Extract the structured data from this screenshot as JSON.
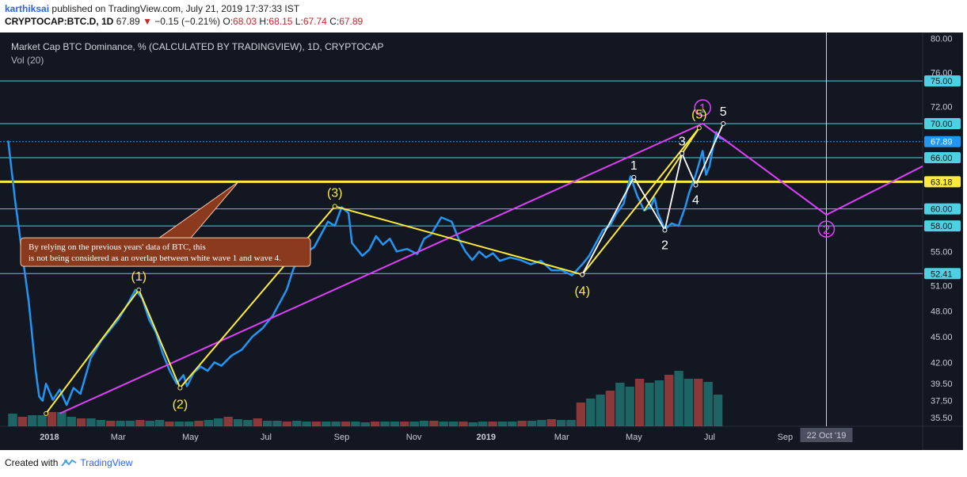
{
  "header": {
    "author": "karthiksai",
    "published": "published on TradingView.com, July 21, 2019 17:37:33 IST",
    "symbol": "CRYPTOCAP:BTC.D, 1D",
    "last": "67.89",
    "change_arrow": "▼",
    "change": "−0.15 (−0.21%)",
    "o_label": "O:",
    "o": "68.03",
    "h_label": "H:",
    "h": "68.15",
    "l_label": "L:",
    "l": "67.74",
    "c_label": "C:",
    "c": "67.89"
  },
  "footer": {
    "created_with": "Created with",
    "brand": "TradingView",
    "brand_icon": "tradingview-logo-icon"
  },
  "colors": {
    "background": "#131722",
    "price": "#2196f3",
    "yellow": "#ffeb3b",
    "magenta": "#e040fb",
    "cyan": "#4dd0e1",
    "note_bg": "#8b3a1e"
  },
  "chart_data": {
    "type": "line",
    "title": "Market Cap BTC Dominance, % (CALCULATED BY TRADINGVIEW), 1D, CRYPTOCAP",
    "subtitle": "Vol (20)",
    "ylim": [
      34.5,
      80.5
    ],
    "xlim": [
      0,
      26.7
    ],
    "y_ticks": [
      80.0,
      76.0,
      72.0,
      66.0,
      55.0,
      51.0,
      48.0,
      45.0,
      42.0,
      39.5,
      37.5,
      35.5
    ],
    "x_ticks": [
      {
        "label": "2018",
        "x": 1.3,
        "bold": true
      },
      {
        "label": "Mar",
        "x": 3.3
      },
      {
        "label": "May",
        "x": 5.4
      },
      {
        "label": "Jul",
        "x": 7.6
      },
      {
        "label": "Sep",
        "x": 9.8
      },
      {
        "label": "Nov",
        "x": 11.9
      },
      {
        "label": "2019",
        "x": 14.0,
        "bold": true
      },
      {
        "label": "Mar",
        "x": 16.2
      },
      {
        "label": "May",
        "x": 18.3
      },
      {
        "label": "Jul",
        "x": 20.5
      },
      {
        "label": "Sep",
        "x": 22.7
      }
    ],
    "x_units": "months since Dec 1, 2017",
    "levels": [
      {
        "value": 75.0,
        "label": "75.00",
        "color": "cyan"
      },
      {
        "value": 70.0,
        "label": "70.00",
        "color": "cyan"
      },
      {
        "value": 67.89,
        "label": "67.89",
        "color": "current"
      },
      {
        "value": 66.0,
        "label": "66.00",
        "color": "cyan"
      },
      {
        "value": 63.18,
        "label": "63.18",
        "color": "yellow"
      },
      {
        "value": 60.0,
        "label": "60.00",
        "color": "cyan"
      },
      {
        "value": 58.0,
        "label": "58.00",
        "color": "cyan"
      },
      {
        "value": 52.41,
        "label": "52.41",
        "color": "cyan"
      }
    ],
    "series": [
      {
        "name": "BTC Dominance",
        "x": [
          0.1,
          0.3,
          0.5,
          0.7,
          0.8,
          0.9,
          1.0,
          1.1,
          1.2,
          1.4,
          1.6,
          1.8,
          2.0,
          2.2,
          2.5,
          2.8,
          3.0,
          3.3,
          3.6,
          3.8,
          4.0,
          4.2,
          4.4,
          4.6,
          4.8,
          5.0,
          5.2,
          5.3,
          5.5,
          5.7,
          5.9,
          6.1,
          6.3,
          6.6,
          6.9,
          7.2,
          7.5,
          7.8,
          8.0,
          8.2,
          8.4,
          8.6,
          8.8,
          9.0,
          9.2,
          9.4,
          9.6,
          9.8,
          10.0,
          10.1,
          10.2,
          10.4,
          10.6,
          10.8,
          11.0,
          11.2,
          11.4,
          11.7,
          12.0,
          12.2,
          12.4,
          12.7,
          13.0,
          13.2,
          13.4,
          13.6,
          13.8,
          14.0,
          14.2,
          14.4,
          14.7,
          15.0,
          15.3,
          15.6,
          15.9,
          16.2,
          16.5,
          16.8,
          17.0,
          17.2,
          17.4,
          17.6,
          17.8,
          18.0,
          18.2,
          18.4,
          18.6,
          18.8,
          18.9,
          19.0,
          19.2,
          19.4,
          19.6,
          19.8,
          19.9,
          20.1,
          20.3,
          20.4,
          20.5,
          20.6,
          20.7,
          20.8,
          20.9,
          21.0
        ],
        "y": [
          68.0,
          61.0,
          55.0,
          49.0,
          45.0,
          41.0,
          38.0,
          37.5,
          39.5,
          37.6,
          38.8,
          37.0,
          39.0,
          38.3,
          42.5,
          44.5,
          45.5,
          47.0,
          49.0,
          50.5,
          49.5,
          47.0,
          45.5,
          43.0,
          41.0,
          39.5,
          40.5,
          39.2,
          40.8,
          41.5,
          41.0,
          42.0,
          41.6,
          42.8,
          43.5,
          45.0,
          46.0,
          47.5,
          49.0,
          50.5,
          53.0,
          54.5,
          55.0,
          55.5,
          57.0,
          58.5,
          58.0,
          60.2,
          59.5,
          56.0,
          55.5,
          54.5,
          55.2,
          56.8,
          55.8,
          56.5,
          55.0,
          55.3,
          54.7,
          56.5,
          57.0,
          59.0,
          58.5,
          56.5,
          55.0,
          54.0,
          55.0,
          54.3,
          54.8,
          53.9,
          54.3,
          54.0,
          53.5,
          53.9,
          52.8,
          52.8,
          52.2,
          53.5,
          54.5,
          56.0,
          57.5,
          58.0,
          59.5,
          60.6,
          63.8,
          61.5,
          59.8,
          60.3,
          61.3,
          59.5,
          57.6,
          58.3,
          58.0,
          60.3,
          61.8,
          64.0,
          66.8,
          64.0,
          65.0,
          67.2,
          69.0,
          68.3,
          68.2,
          67.89
        ]
      }
    ],
    "volume": [
      0.16,
      0.12,
      0.14,
      0.14,
      0.18,
      0.18,
      0.12,
      0.1,
      0.1,
      0.08,
      0.07,
      0.07,
      0.07,
      0.08,
      0.07,
      0.08,
      0.06,
      0.06,
      0.06,
      0.07,
      0.08,
      0.1,
      0.12,
      0.09,
      0.08,
      0.1,
      0.07,
      0.07,
      0.06,
      0.07,
      0.06,
      0.06,
      0.06,
      0.06,
      0.06,
      0.06,
      0.05,
      0.06,
      0.06,
      0.06,
      0.06,
      0.06,
      0.07,
      0.07,
      0.06,
      0.06,
      0.06,
      0.05,
      0.06,
      0.06,
      0.06,
      0.06,
      0.07,
      0.07,
      0.08,
      0.09,
      0.08,
      0.08,
      0.3,
      0.35,
      0.4,
      0.45,
      0.55,
      0.5,
      0.6,
      0.55,
      0.58,
      0.65,
      0.7,
      0.6,
      0.6,
      0.56,
      0.4
    ],
    "wave_yellow": {
      "x": [
        1.2,
        3.9,
        5.1,
        9.6,
        16.8,
        20.2
      ],
      "y": [
        36.0,
        50.5,
        39.0,
        60.3,
        52.3,
        69.5
      ],
      "labels": [
        "(1)",
        "(2)",
        "(3)",
        "(4)",
        "(5)"
      ]
    },
    "wave_white": {
      "x": [
        16.8,
        18.3,
        19.2,
        19.7,
        20.1,
        20.9
      ],
      "y": [
        52.3,
        63.7,
        57.5,
        66.5,
        62.8,
        70.0
      ],
      "labels": [
        "1",
        "2",
        "3",
        "4",
        "5"
      ]
    },
    "wave_yellow_extra": {
      "x": [
        18.6,
        20.2
      ],
      "y": [
        59.8,
        69.5
      ]
    },
    "trend_magenta": {
      "x": [
        1.6,
        20.3,
        23.9,
        26.7
      ],
      "y": [
        36.0,
        70.0,
        59.3,
        65.0
      ],
      "labels": [
        "1",
        "2"
      ]
    },
    "current_date_line": {
      "x": 23.9,
      "label": "22 Oct '19"
    },
    "annotation": {
      "line1": "By relying on the previous years' data of BTC, this",
      "line2": "is not being considered as an overlap between white wave 1 and wave 4.",
      "pointer_to": {
        "x": 6.8,
        "y": 63.18
      }
    }
  }
}
